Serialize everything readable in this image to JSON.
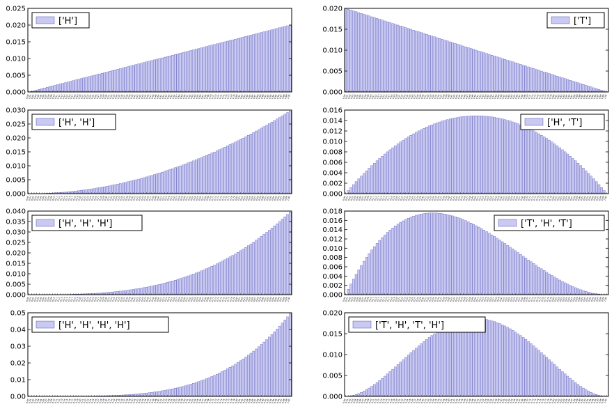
{
  "colors": {
    "bar_fill": "#c9c9f2",
    "bar_edge": "#2f2fa8",
    "axis": "#000000",
    "legend_swatch": "#c9c9f2"
  },
  "chart_data": [
    {
      "type": "bar",
      "legend": "['H']",
      "legend_loc": "upper-left",
      "ylim": [
        0,
        0.025
      ],
      "yticks": [
        0.0,
        0.005,
        0.01,
        0.015,
        0.02,
        0.025
      ],
      "ytick_labels": [
        "0.000",
        "0.005",
        "0.010",
        "0.015",
        "0.020",
        "0.025"
      ],
      "formula": "linear-up",
      "peak": 0.02,
      "n_bars": 101,
      "x_range": [
        0,
        1
      ]
    },
    {
      "type": "bar",
      "legend": "['T']",
      "legend_loc": "upper-right",
      "ylim": [
        0,
        0.02
      ],
      "yticks": [
        0.0,
        0.005,
        0.01,
        0.015,
        0.02
      ],
      "ytick_labels": [
        "0.000",
        "0.005",
        "0.010",
        "0.015",
        "0.020"
      ],
      "formula": "linear-down",
      "peak": 0.02,
      "n_bars": 101,
      "x_range": [
        0,
        1
      ]
    },
    {
      "type": "bar",
      "legend": "['H', 'H']",
      "legend_loc": "upper-left",
      "ylim": [
        0,
        0.03
      ],
      "yticks": [
        0.0,
        0.005,
        0.01,
        0.015,
        0.02,
        0.025,
        0.03
      ],
      "ytick_labels": [
        "0.000",
        "0.005",
        "0.010",
        "0.015",
        "0.020",
        "0.025",
        "0.030"
      ],
      "formula": "beta(3,1)",
      "peak": 0.0297,
      "n_bars": 101,
      "x_range": [
        0,
        1
      ]
    },
    {
      "type": "bar",
      "legend": "['H', 'T']",
      "legend_loc": "upper-right",
      "ylim": [
        0,
        0.016
      ],
      "yticks": [
        0.0,
        0.002,
        0.004,
        0.006,
        0.008,
        0.01,
        0.012,
        0.014,
        0.016
      ],
      "ytick_labels": [
        "0.000",
        "0.002",
        "0.004",
        "0.006",
        "0.008",
        "0.010",
        "0.012",
        "0.014",
        "0.016"
      ],
      "formula": "beta(2,2)",
      "peak": 0.0149,
      "n_bars": 101,
      "x_range": [
        0,
        1
      ]
    },
    {
      "type": "bar",
      "legend": "['H', 'H', 'H']",
      "legend_loc": "upper-left",
      "ylim": [
        0,
        0.04
      ],
      "yticks": [
        0.0,
        0.005,
        0.01,
        0.015,
        0.02,
        0.025,
        0.03,
        0.035,
        0.04
      ],
      "ytick_labels": [
        "0.000",
        "0.005",
        "0.010",
        "0.015",
        "0.020",
        "0.025",
        "0.030",
        "0.035",
        "0.040"
      ],
      "formula": "beta(4,1)",
      "peak": 0.0396,
      "n_bars": 101,
      "x_range": [
        0,
        1
      ]
    },
    {
      "type": "bar",
      "legend": "['T', 'H', 'T']",
      "legend_loc": "upper-right",
      "ylim": [
        0,
        0.018
      ],
      "yticks": [
        0.0,
        0.002,
        0.004,
        0.006,
        0.008,
        0.01,
        0.012,
        0.014,
        0.016,
        0.018
      ],
      "ytick_labels": [
        "0.000",
        "0.002",
        "0.004",
        "0.006",
        "0.008",
        "0.010",
        "0.012",
        "0.014",
        "0.016",
        "0.018"
      ],
      "formula": "beta(2,3)",
      "peak": 0.0176,
      "n_bars": 101,
      "x_range": [
        0,
        1
      ]
    },
    {
      "type": "bar",
      "legend": "['H', 'H', 'H', 'H']",
      "legend_loc": "upper-left",
      "ylim": [
        0,
        0.05
      ],
      "yticks": [
        0.0,
        0.01,
        0.02,
        0.03,
        0.04,
        0.05
      ],
      "ytick_labels": [
        "0.00",
        "0.01",
        "0.02",
        "0.03",
        "0.04",
        "0.05"
      ],
      "formula": "beta(5,1)",
      "peak": 0.0495,
      "n_bars": 101,
      "x_range": [
        0,
        1
      ]
    },
    {
      "type": "bar",
      "legend": "['T', 'H', 'T', 'H']",
      "legend_loc": "upper-left",
      "ylim": [
        0,
        0.02
      ],
      "yticks": [
        0.0,
        0.005,
        0.01,
        0.015,
        0.02
      ],
      "ytick_labels": [
        "0.000",
        "0.005",
        "0.010",
        "0.015",
        "0.020"
      ],
      "formula": "beta(3,3)",
      "peak": 0.0186,
      "n_bars": 101,
      "x_range": [
        0,
        1
      ]
    }
  ]
}
